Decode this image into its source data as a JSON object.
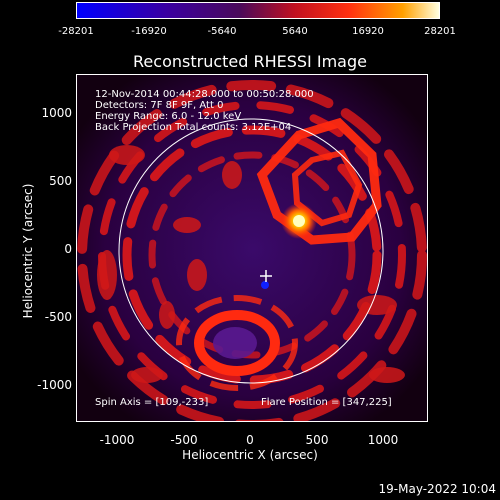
{
  "colorbar": {
    "ticks": [
      "-28201",
      "-16920",
      "-5640",
      "5640",
      "16920",
      "28201"
    ]
  },
  "title": "Reconstructed RHESSI Image",
  "info": {
    "time_range": "12-Nov-2014 00:44:28.000 to 00:50:28.000",
    "detectors": "Detectors: 7F 8F 9F, Att 0",
    "energy_range": "Energy Range: 6.0 - 12.0 keV",
    "method": "Back Projection    Total counts: 3.12E+04",
    "spin_axis": "Spin Axis = [109,-233]",
    "flare_position": "Flare Position = [347,225]"
  },
  "axes": {
    "xlabel": "Heliocentric X (arcsec)",
    "ylabel": "Heliocentric Y (arcsec)",
    "xticks": [
      "-1000",
      "-500",
      "0",
      "500",
      "1000"
    ],
    "yticks": [
      "1000",
      "500",
      "0",
      "-500",
      "-1000"
    ],
    "xlim": [
      -1300,
      1300
    ],
    "ylim": [
      -1300,
      1300
    ]
  },
  "colors": {
    "background": "#000000",
    "colormap": [
      "#0000ff",
      "#2a0050",
      "#6a0a8a",
      "#ff2a10",
      "#ffa000",
      "#ffffff"
    ]
  },
  "footer": {
    "date": "19-May-2022 10:04"
  }
}
